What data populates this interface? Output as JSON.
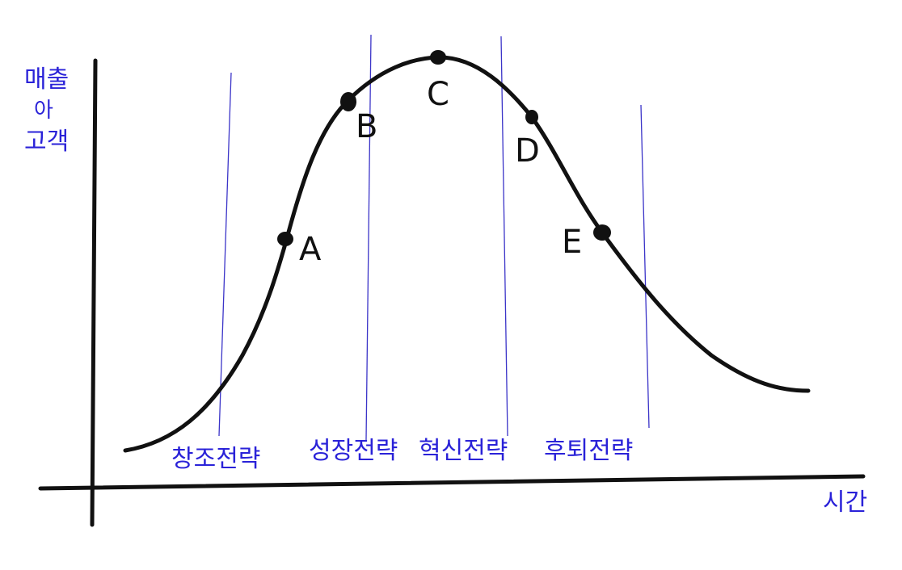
{
  "y_axis_label": [
    "매출",
    "아",
    "고객"
  ],
  "x_axis_label": "시간",
  "points": [
    "A",
    "B",
    "C",
    "D",
    "E"
  ],
  "strategies": [
    "창조전략",
    "성장전략",
    "혁신전략",
    "후퇴전략"
  ],
  "colors": {
    "curve": "#111111",
    "annotation": "#2a22d8",
    "divider": "#3b34c8"
  }
}
